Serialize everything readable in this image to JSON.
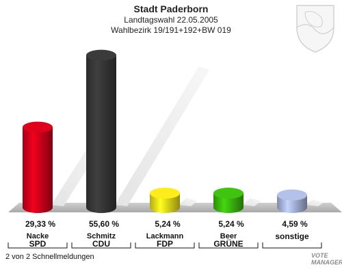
{
  "header": {
    "title": "Stadt Paderborn",
    "line1": "Landtagswahl 22.05.2005",
    "line2": "Wahlbezirk 19/191+192+BW 019"
  },
  "chart_data": {
    "type": "bar",
    "categories": [
      "SPD",
      "CDU",
      "FDP",
      "GRÜNE",
      "sonstige"
    ],
    "candidates": [
      "Nacke",
      "Schmitz",
      "Lackmann",
      "Beer",
      ""
    ],
    "values": [
      29.33,
      55.6,
      5.24,
      5.24,
      4.59
    ],
    "value_labels": [
      "29,33 %",
      "55,60 %",
      "5,24 %",
      "5,24 %",
      "4,59 %"
    ],
    "colors": [
      "#d4001a",
      "#383838",
      "#f2e21a",
      "#3cbb0e",
      "#aab8e0"
    ],
    "ylim": [
      0,
      60
    ]
  },
  "footer": {
    "note": "2 von 2 Schnellmeldungen",
    "logo_line1": "VOTE",
    "logo_line2": "MANAGER"
  }
}
